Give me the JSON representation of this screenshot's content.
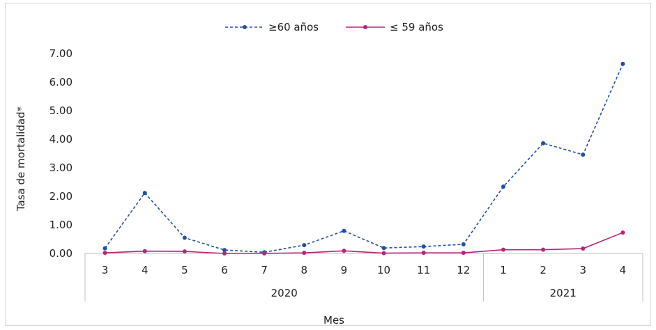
{
  "chart_data": {
    "type": "line",
    "categories": [
      "3",
      "4",
      "5",
      "6",
      "7",
      "8",
      "9",
      "10",
      "11",
      "12",
      "1",
      "2",
      "3",
      "4"
    ],
    "groups": [
      {
        "label": "2020",
        "start": 0,
        "end": 9
      },
      {
        "label": "2021",
        "start": 10,
        "end": 13
      }
    ],
    "series": [
      {
        "name": "≥60 años",
        "color": "#1f4fa8",
        "style": "dashed",
        "values": [
          0.18,
          2.12,
          0.55,
          0.12,
          0.04,
          0.29,
          0.79,
          0.19,
          0.24,
          0.32,
          2.34,
          3.86,
          3.46,
          6.64
        ]
      },
      {
        "name": "≤ 59 años",
        "color": "#b8237c",
        "style": "solid",
        "values": [
          0.02,
          0.08,
          0.07,
          0.0,
          0.0,
          0.02,
          0.09,
          0.01,
          0.02,
          0.02,
          0.13,
          0.13,
          0.17,
          0.73
        ]
      }
    ],
    "ylabel": "Tasa de mortalidad*",
    "xlabel": "Mes",
    "ylim": [
      0,
      7
    ],
    "yticks": [
      "0.00",
      "1.00",
      "2.00",
      "3.00",
      "4.00",
      "5.00",
      "6.00",
      "7.00"
    ],
    "grid": false,
    "legend": "top"
  }
}
